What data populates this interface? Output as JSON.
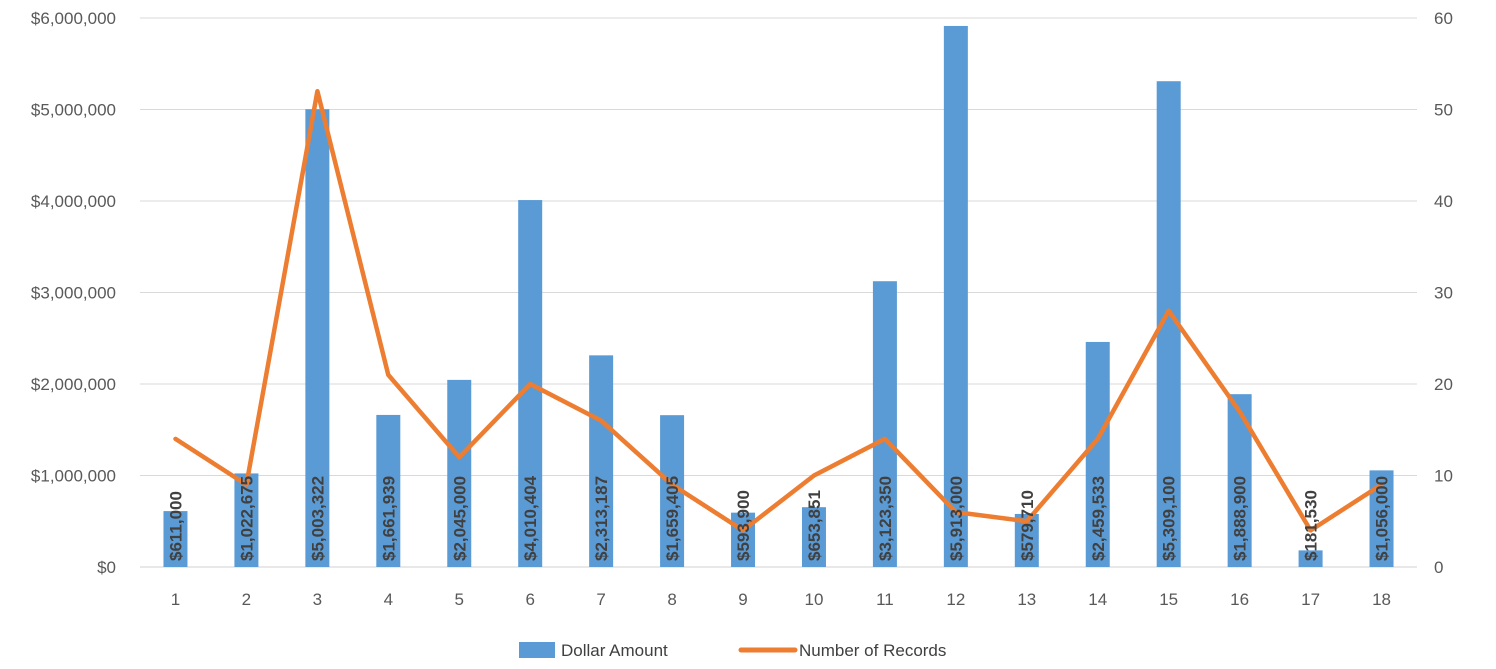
{
  "chart_data": {
    "type": "bar",
    "categories": [
      "1",
      "2",
      "3",
      "4",
      "5",
      "6",
      "7",
      "8",
      "9",
      "10",
      "11",
      "12",
      "13",
      "14",
      "15",
      "16",
      "17",
      "18"
    ],
    "series": [
      {
        "name": "Dollar Amount",
        "type": "bar",
        "axis": "left",
        "color": "#5B9BD5",
        "values": [
          611000,
          1022675,
          5003322,
          1661939,
          2045000,
          4010404,
          2313187,
          1659405,
          593900,
          653851,
          3123350,
          5913000,
          579710,
          2459533,
          5309100,
          1888900,
          181530,
          1056000
        ],
        "data_labels": [
          "$611,000",
          "$1,022,675",
          "$5,003,322",
          "$1,661,939",
          "$2,045,000",
          "$4,010,404",
          "$2,313,187",
          "$1,659,405",
          "$593,900",
          "$653,851",
          "$3,123,350",
          "$5,913,000",
          "$579,710",
          "$2,459,533",
          "$5,309,100",
          "$1,888,900",
          "$181,530",
          "$1,056,000"
        ]
      },
      {
        "name": "Number of Records",
        "type": "line",
        "axis": "right",
        "color": "#ED7D31",
        "values": [
          14,
          9,
          52,
          21,
          12,
          20,
          16,
          9,
          4,
          10,
          14,
          6,
          5,
          14,
          28,
          17,
          4,
          9
        ]
      }
    ],
    "y_left": {
      "ylim": [
        0,
        6000000
      ],
      "tick_labels": [
        "$0",
        "$1,000,000",
        "$2,000,000",
        "$3,000,000",
        "$4,000,000",
        "$5,000,000",
        "$6,000,000"
      ]
    },
    "y_right": {
      "ylim": [
        0,
        60
      ],
      "tick_labels": [
        "0",
        "10",
        "20",
        "30",
        "40",
        "50",
        "60"
      ]
    },
    "title": "",
    "xlabel": "",
    "ylabel": "",
    "grid": true,
    "legend": "bottom-center",
    "colors": {
      "gridline": "#D9D9D9",
      "axis_text": "#595959",
      "label_text": "#404040"
    }
  }
}
